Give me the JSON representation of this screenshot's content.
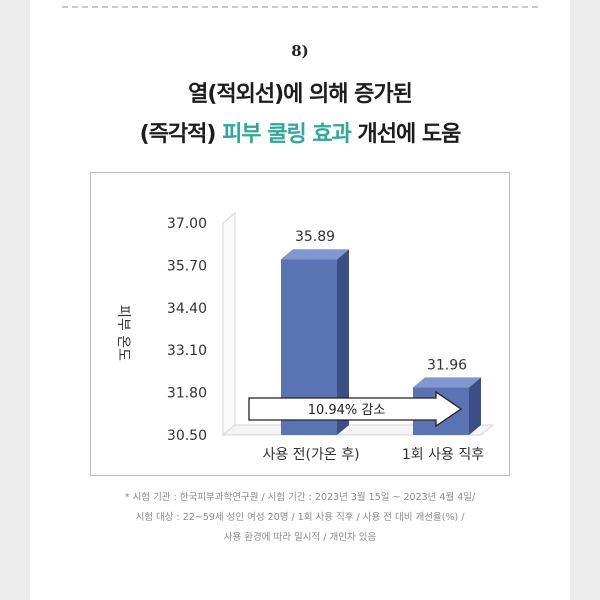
{
  "section_number": "8)",
  "headline": {
    "line1": "열(적외선)에 의해 증가된",
    "line2_before": "(즉각적) ",
    "line2_accent": "피부 쿨링 효과",
    "line2_after": " 개선에 도움",
    "accent_color": "#2fa79c"
  },
  "chart_data": {
    "type": "bar",
    "categories": [
      "사용 전(가온 후)",
      "1회 사용 직후"
    ],
    "values": [
      35.89,
      31.96
    ],
    "value_labels": [
      "35.89",
      "31.96"
    ],
    "ylabel": "피부 온도",
    "ylim": [
      30.5,
      37.0
    ],
    "yticks": [
      "37.00",
      "35.70",
      "34.40",
      "33.10",
      "31.80",
      "30.50"
    ],
    "bar_color": "#5a73b3",
    "bar_side_color": "#3b4f86",
    "bar_top_color": "#8197cf",
    "annotation": "10.94% 감소",
    "grid": false,
    "legend": "none"
  },
  "footnote": [
    "* 시험 기관 : 한국피부과학연구원  / 시험 기간 : 2023년 3월 15일 ~ 2023년 4월 4일/",
    "시험 대상 : 22~59세 성인 여성 20명 / 1회 사용 직후 / 사용 전 대비 개선율(%) /",
    "사용 환경에 따라 일시적 / 개인차 있음"
  ]
}
